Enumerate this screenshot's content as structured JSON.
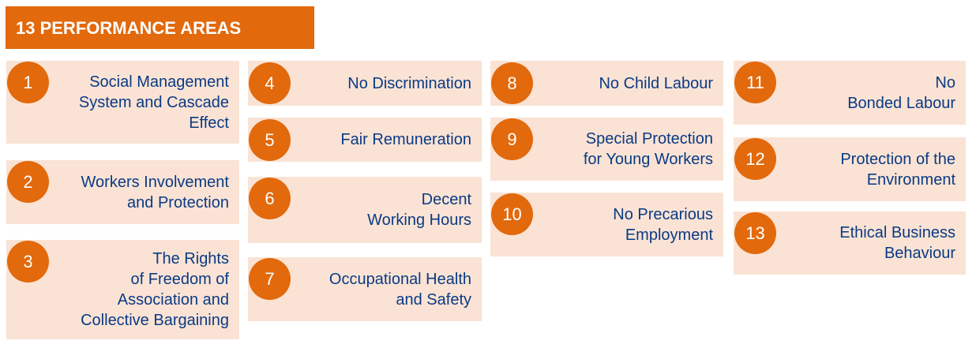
{
  "title": "13 PERFORMANCE AREAS",
  "areas": [
    {
      "number": "1",
      "label": "Social Management\nSystem and Cascade\nEffect"
    },
    {
      "number": "2",
      "label": "Workers Involvement\nand Protection"
    },
    {
      "number": "3",
      "label": "The Rights\nof Freedom of\nAssociation and\nCollective Bargaining"
    },
    {
      "number": "4",
      "label": "No Discrimination"
    },
    {
      "number": "5",
      "label": "Fair Remuneration"
    },
    {
      "number": "6",
      "label": "Decent\nWorking Hours"
    },
    {
      "number": "7",
      "label": "Occupational Health\nand Safety"
    },
    {
      "number": "8",
      "label": "No Child Labour"
    },
    {
      "number": "9",
      "label": "Special Protection\nfor Young Workers"
    },
    {
      "number": "10",
      "label": "No Precarious\nEmployment"
    },
    {
      "number": "11",
      "label": "No\nBonded Labour"
    },
    {
      "number": "12",
      "label": "Protection of the\nEnvironment"
    },
    {
      "number": "13",
      "label": "Ethical Business\nBehaviour"
    }
  ],
  "colors": {
    "accent": "#e2690c",
    "card_bg": "#fae3d4",
    "text": "#0b3a85"
  }
}
